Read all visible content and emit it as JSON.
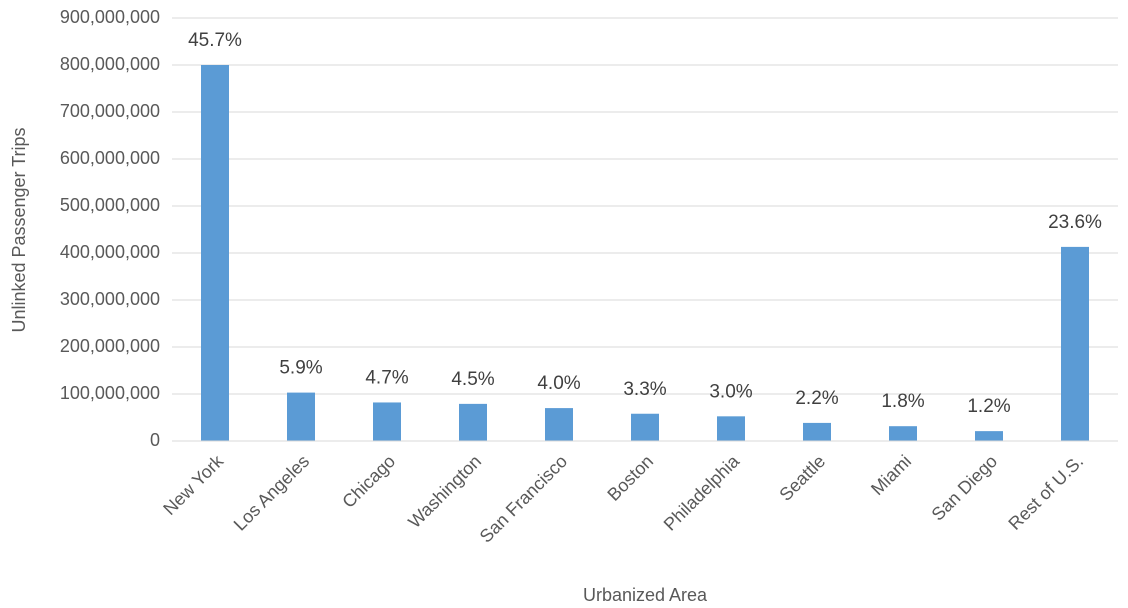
{
  "chart_data": {
    "type": "bar",
    "x_label": "Urbanized Area",
    "y_label": "Unlinked Passenger Trips",
    "categories": [
      "New York",
      "Los Angeles",
      "Chicago",
      "Washington",
      "San Francisco",
      "Boston",
      "Philadelphia",
      "Seattle",
      "Miami",
      "San Diego",
      "Rest of U.S."
    ],
    "values": [
      800000000,
      103000000,
      82000000,
      79000000,
      70000000,
      58000000,
      52500000,
      38500000,
      31500000,
      21000000,
      413000000
    ],
    "data_labels": [
      "45.7%",
      "5.9%",
      "4.7%",
      "4.5%",
      "4.0%",
      "3.3%",
      "3.0%",
      "2.2%",
      "1.8%",
      "1.2%",
      "23.6%"
    ],
    "color": "#5b9bd5",
    "ylim": [
      0,
      900000000
    ],
    "yticks": [
      0,
      {
        "value": 100000000,
        "label": "100,000,000"
      },
      {
        "value": 200000000,
        "label": "200,000,000"
      },
      {
        "value": 300000000,
        "label": "300,000,000"
      },
      {
        "value": 400000000,
        "label": "400,000,000"
      },
      {
        "value": 500000000,
        "label": "500,000,000"
      },
      {
        "value": 600000000,
        "label": "600,000,000"
      },
      {
        "value": 700000000,
        "label": "700,000,000"
      },
      {
        "value": 800000000,
        "label": "800,000,000"
      },
      {
        "value": 900000000,
        "label": "900,000,000"
      }
    ],
    "grid": true
  }
}
